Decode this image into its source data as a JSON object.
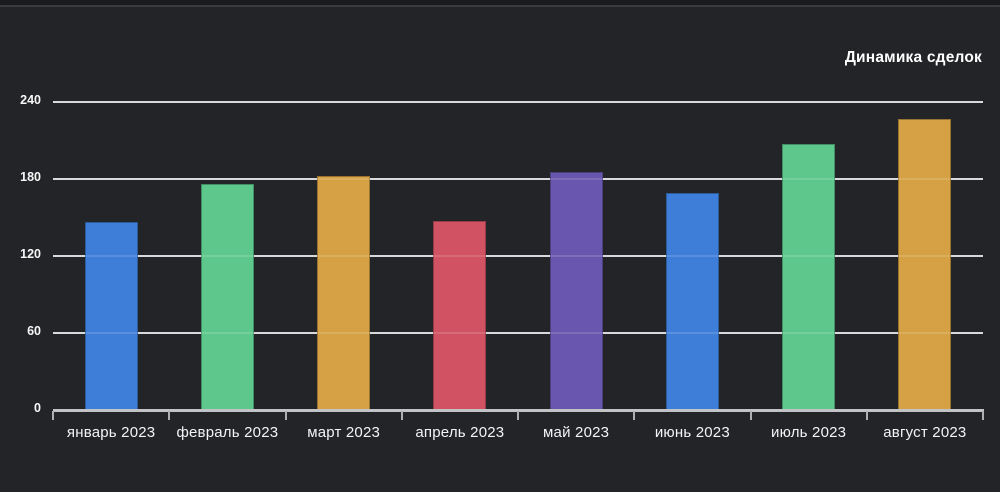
{
  "window": {
    "background": "#232427",
    "top_strip_color": "#1a1b1d",
    "top_divider_color": "#3a3c40"
  },
  "chart_data": {
    "type": "bar",
    "title": "Динамика сделок",
    "categories": [
      "январь 2023",
      "февраль 2023",
      "март 2023",
      "апрель 2023",
      "май 2023",
      "июнь 2023",
      "июль 2023",
      "август 2023"
    ],
    "values": [
      146,
      176,
      182,
      147,
      185,
      169,
      207,
      227
    ],
    "bar_colors": [
      "#3e7ed9",
      "#5ec78c",
      "#d5a144",
      "#d15262",
      "#6956ae",
      "#3e7ed9",
      "#5ec78c",
      "#d5a144"
    ],
    "y_ticks": [
      0,
      60,
      120,
      180,
      240
    ],
    "ylim": [
      0,
      240
    ],
    "xlabel": "",
    "ylabel": "",
    "grid": true,
    "legend_position": "none",
    "colors": {
      "title": "#ffffff",
      "gridline": "#d2d3d5",
      "gridline_overlay": "rgba(255,255,255,0.14)",
      "axis": "#c2c3c6",
      "tick": "#aeafb2",
      "y_tick_label": "#f7f7f8",
      "x_tick_label": "#f3f4f5"
    }
  }
}
